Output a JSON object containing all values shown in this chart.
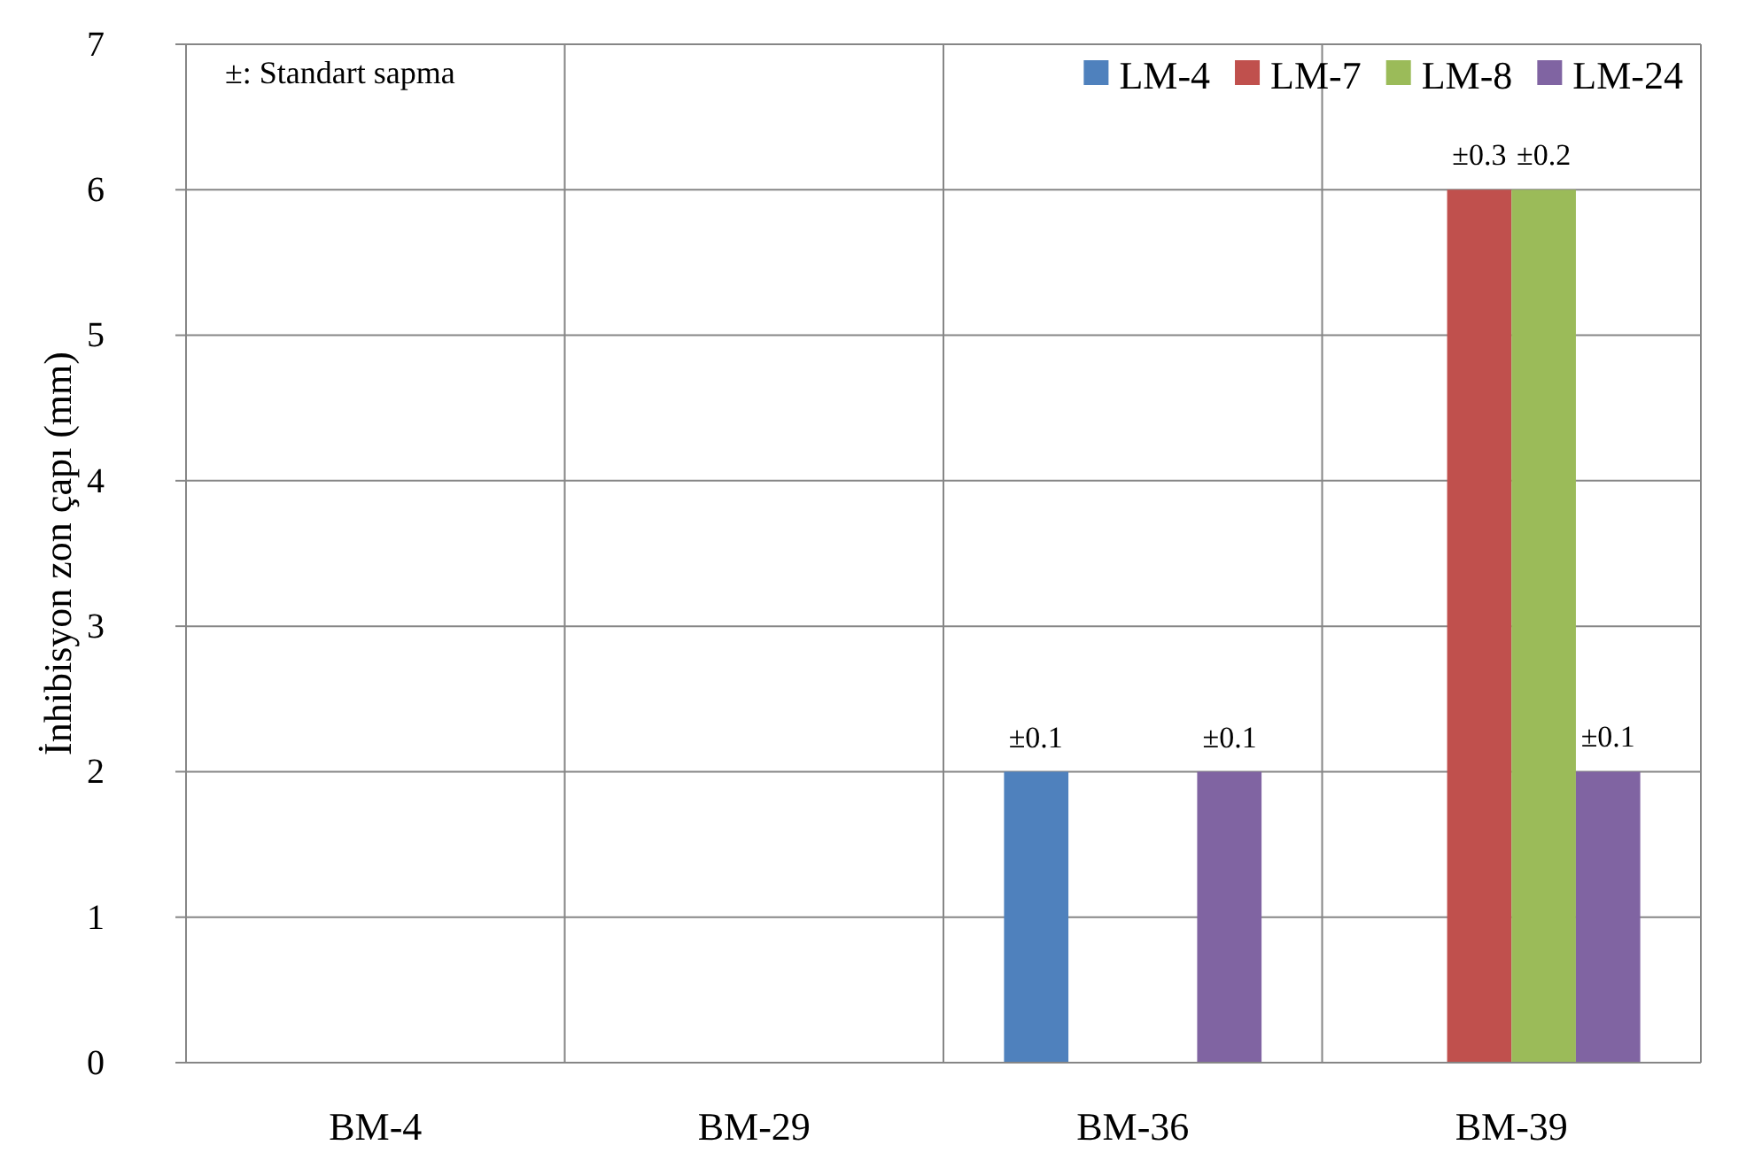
{
  "chart_data": {
    "type": "bar",
    "ylabel": "İnhibisyon zon çapı (mm)",
    "categories": [
      "BM-4",
      "BM-29",
      "BM-36",
      "BM-39"
    ],
    "series": [
      {
        "name": "LM-4",
        "color": "#4f81bd",
        "values": [
          0,
          0,
          2,
          0
        ]
      },
      {
        "name": "LM-7",
        "color": "#c0504d",
        "values": [
          0,
          0,
          0,
          6
        ]
      },
      {
        "name": "LM-8",
        "color": "#9bbb59",
        "values": [
          0,
          0,
          0,
          6
        ]
      },
      {
        "name": "LM-24",
        "color": "#8064a2",
        "values": [
          0,
          0,
          2,
          2
        ]
      }
    ],
    "ylim": [
      0,
      7
    ],
    "yticks": [
      0,
      1,
      2,
      3,
      4,
      5,
      6,
      7
    ],
    "grid": "y",
    "legend": "top right",
    "annotations": [
      "±: Standart sapma",
      "±0.1",
      "±0.1",
      {
        "text": "±0.3",
        "x": "BM-39",
        "y": 6
      },
      {
        "text": "±0.2",
        "x": "BM-39",
        "y": 6
      },
      {
        "text": "±0.1",
        "x": "BM-39",
        "y": 2
      }
    ]
  }
}
